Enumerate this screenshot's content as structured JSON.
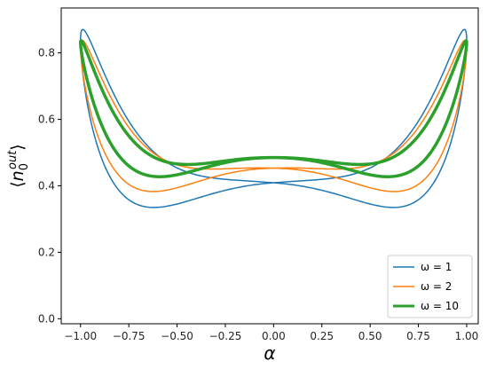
{
  "chart_data": {
    "type": "line",
    "title": "",
    "xlabel": "α",
    "ylabel_parts": {
      "open": "⟨",
      "base": "n",
      "sub": "0",
      "sup": "out",
      "close": "⟩"
    },
    "xlim": [
      -1.1,
      1.06
    ],
    "ylim": [
      -0.015,
      0.935
    ],
    "x_ticks": [
      -1.0,
      -0.75,
      -0.5,
      -0.25,
      0.0,
      0.25,
      0.5,
      0.75,
      1.0
    ],
    "x_tick_labels": [
      "−1.00",
      "−0.75",
      "−0.50",
      "−0.25",
      "0.00",
      "0.25",
      "0.50",
      "0.75",
      "1.00"
    ],
    "y_ticks": [
      0.0,
      0.2,
      0.4,
      0.6,
      0.8
    ],
    "y_tick_labels": [
      "0.0",
      "0.2",
      "0.4",
      "0.6",
      "0.8"
    ],
    "grid": false,
    "legend_placement": "lower-right",
    "series": [
      {
        "name": "ω = 1",
        "color": "#1f77b4",
        "line_width": 1.5,
        "params": {
          "c": 0.465,
          "a": 0.43,
          "phi_deg": 30,
          "d": 0.85,
          "n": 1.7
        }
      },
      {
        "name": "ω = 2",
        "color": "#ff7f0e",
        "line_width": 1.5,
        "params": {
          "c": 0.48,
          "a": 0.37,
          "phi_deg": 25,
          "d": 0.92,
          "n": 1.9
        }
      },
      {
        "name": "ω = 10",
        "color": "#2ca02c",
        "line_width": 3.5,
        "params": {
          "c": 0.495,
          "a": 0.345,
          "phi_deg": 14,
          "d": 0.97,
          "n": 2.0
        }
      }
    ]
  }
}
